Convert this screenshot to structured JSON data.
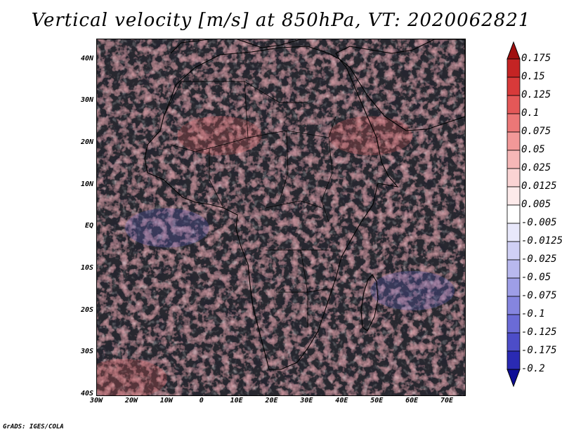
{
  "title": "Vertical velocity [m/s] at 850hPa, VT: 2020062821",
  "credit": "GrADS: IGES/COLA",
  "map": {
    "lon_range": [
      -30,
      75
    ],
    "lat_range": [
      -40,
      45
    ],
    "background_color": "#c9c9f0",
    "land_outline_color": "#000000"
  },
  "axes": {
    "y_ticks": [
      {
        "label": "40N",
        "lat": 40
      },
      {
        "label": "30N",
        "lat": 30
      },
      {
        "label": "20N",
        "lat": 20
      },
      {
        "label": "10N",
        "lat": 10
      },
      {
        "label": "EQ",
        "lat": 0
      },
      {
        "label": "10S",
        "lat": -10
      },
      {
        "label": "20S",
        "lat": -20
      },
      {
        "label": "30S",
        "lat": -30
      },
      {
        "label": "40S",
        "lat": -40
      }
    ],
    "x_ticks": [
      {
        "label": "30W",
        "lon": -30
      },
      {
        "label": "20W",
        "lon": -20
      },
      {
        "label": "10W",
        "lon": -10
      },
      {
        "label": "0",
        "lon": 0
      },
      {
        "label": "10E",
        "lon": 10
      },
      {
        "label": "20E",
        "lon": 20
      },
      {
        "label": "30E",
        "lon": 30
      },
      {
        "label": "40E",
        "lon": 40
      },
      {
        "label": "50E",
        "lon": 50
      },
      {
        "label": "60E",
        "lon": 60
      },
      {
        "label": "70E",
        "lon": 70
      }
    ]
  },
  "colorbar": {
    "labels": [
      "0.175",
      "0.15",
      "0.125",
      "0.1",
      "0.075",
      "0.05",
      "0.025",
      "0.0125",
      "0.005",
      "-0.005",
      "-0.0125",
      "-0.025",
      "-0.05",
      "-0.075",
      "-0.1",
      "-0.125",
      "-0.175",
      "-0.2"
    ],
    "colors": [
      "#a00f0f",
      "#c42424",
      "#d83a3a",
      "#e45858",
      "#ec7777",
      "#f29898",
      "#f6b7b7",
      "#fad3d3",
      "#fdeaea",
      "#ffffff",
      "#e8e8fb",
      "#d0d0f5",
      "#b8b8ee",
      "#9e9ee7",
      "#8585df",
      "#6b6bd6",
      "#4d4dc8",
      "#2a2ab3",
      "#0d0d96"
    ]
  },
  "field_features": [
    {
      "name": "saharan-updraft-band",
      "lon": 5,
      "lat": 22,
      "sign": "up"
    },
    {
      "name": "arabian-updraft",
      "lon": 48,
      "lat": 22,
      "sign": "up"
    },
    {
      "name": "southern-ocean-band",
      "lon": -22,
      "lat": -36,
      "sign": "up"
    },
    {
      "name": "equatorial-atlantic-subsidence",
      "lon": -10,
      "lat": 0,
      "sign": "down"
    },
    {
      "name": "indian-ocean-subsidence",
      "lon": 60,
      "lat": -15,
      "sign": "down"
    }
  ]
}
